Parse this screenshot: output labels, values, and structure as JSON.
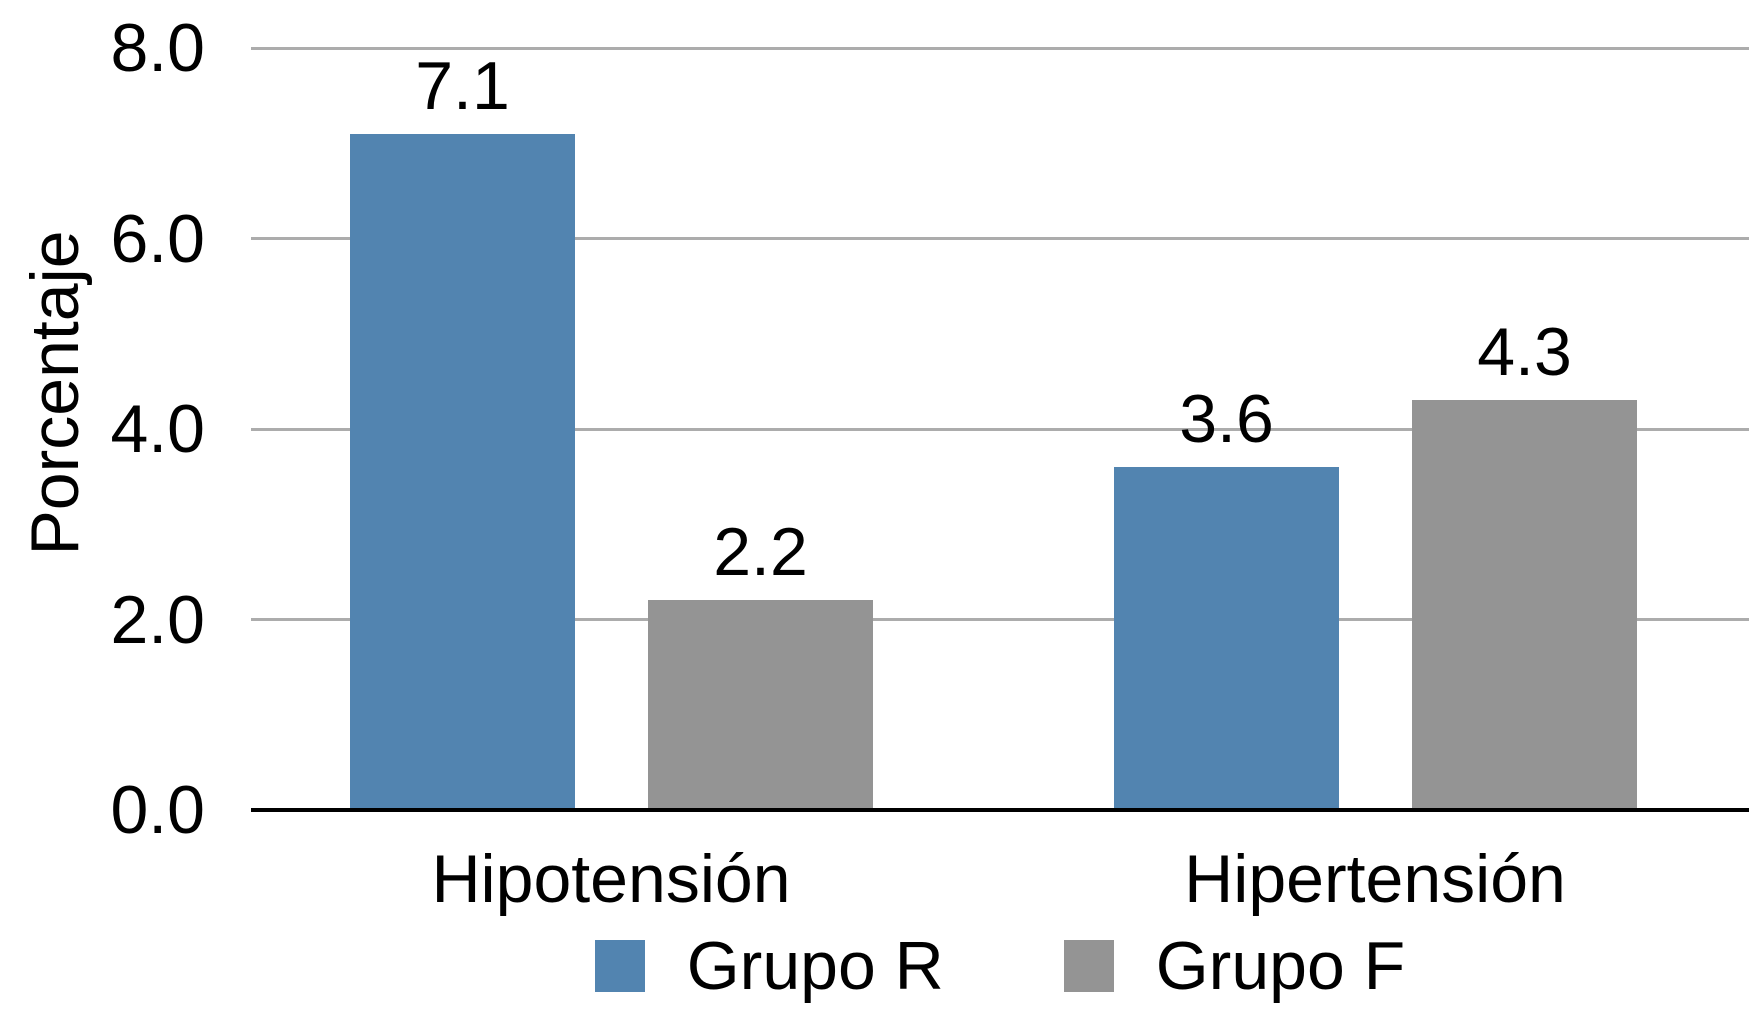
{
  "chart_data": {
    "type": "bar",
    "title": "",
    "xlabel": "",
    "ylabel": "Porcentaje",
    "categories": [
      "Hipotensión",
      "Hipertensión"
    ],
    "series": [
      {
        "name": "Grupo R",
        "color": "#5284B0",
        "values": [
          7.1,
          3.6
        ],
        "value_labels": [
          "7.1",
          "3.6"
        ]
      },
      {
        "name": "Grupo F",
        "color": "#949494",
        "values": [
          2.2,
          4.3
        ],
        "value_labels": [
          "2.2",
          "4.3"
        ]
      }
    ],
    "ylim": [
      0,
      8
    ],
    "ytick_values": [
      0,
      2,
      4,
      6,
      8
    ],
    "ytick_labels": [
      "0.0",
      "2.0",
      "4.0",
      "6.0",
      "8.0"
    ],
    "grid": true,
    "legend_position": "bottom",
    "colors": {
      "gridline": "#ACACAC",
      "axis_line": "#000000",
      "text": "#000000",
      "background": "#FFFFFF"
    }
  }
}
